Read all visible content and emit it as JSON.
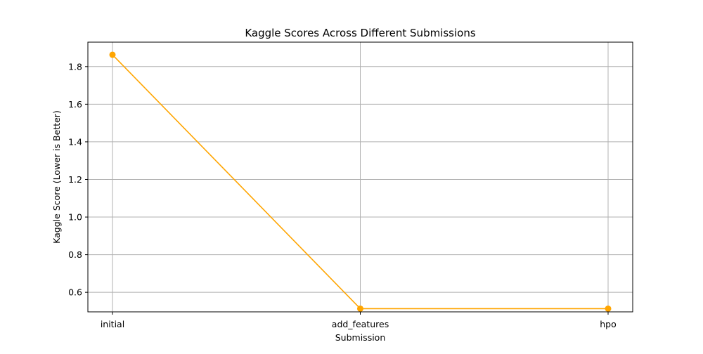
{
  "chart_data": {
    "type": "line",
    "title": "Kaggle Scores Across Different Submissions",
    "xlabel": "Submission",
    "ylabel": "Kaggle Score (Lower is Better)",
    "categories": [
      "initial",
      "add_features",
      "hpo"
    ],
    "series": [
      {
        "values": [
          1.863,
          0.513,
          0.513
        ],
        "color": "#ffa500",
        "marker": "circle"
      }
    ],
    "ylim": [
      0.496,
      1.93
    ],
    "yticks": [
      0.6,
      0.8,
      1.0,
      1.2,
      1.4,
      1.6,
      1.8
    ],
    "ytick_labels": [
      "0.6",
      "0.8",
      "1.0",
      "1.2",
      "1.4",
      "1.6",
      "1.8"
    ],
    "grid": true,
    "grid_color": "#b0b0b0",
    "axis_color": "#000000"
  }
}
